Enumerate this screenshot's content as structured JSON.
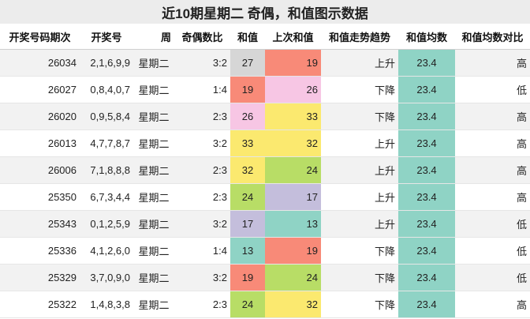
{
  "title": "近10期星期二 奇偶，和值图示数据",
  "headers": [
    "开奖号码期次",
    "开奖号",
    "周",
    "奇偶数比",
    "和值",
    "上次和值",
    "和值走势趋势",
    "和值均数",
    "和值均数对比"
  ],
  "colors": {
    "gray": "#d6d6d6",
    "red": "#f88a78",
    "pink": "#f7c6e4",
    "yellow": "#fbe96f",
    "green": "#b8dd66",
    "lavender": "#c4bedc",
    "teal": "#8fd3c5"
  },
  "rows": [
    {
      "period": "26034",
      "numbers": "2,1,6,9,9",
      "week": "星期二",
      "ratio": "3:2",
      "sum": "27",
      "sum_color": "gray",
      "prev": "19",
      "prev_color": "red",
      "trend": "上升",
      "avg": "23.4",
      "cmp": "高"
    },
    {
      "period": "26027",
      "numbers": "0,8,4,0,7",
      "week": "星期二",
      "ratio": "1:4",
      "sum": "19",
      "sum_color": "red",
      "prev": "26",
      "prev_color": "pink",
      "trend": "下降",
      "avg": "23.4",
      "cmp": "低"
    },
    {
      "period": "26020",
      "numbers": "0,9,5,8,4",
      "week": "星期二",
      "ratio": "2:3",
      "sum": "26",
      "sum_color": "pink",
      "prev": "33",
      "prev_color": "yellow",
      "trend": "下降",
      "avg": "23.4",
      "cmp": "高"
    },
    {
      "period": "26013",
      "numbers": "4,7,7,8,7",
      "week": "星期二",
      "ratio": "3:2",
      "sum": "33",
      "sum_color": "yellow",
      "prev": "32",
      "prev_color": "yellow",
      "trend": "上升",
      "avg": "23.4",
      "cmp": "高"
    },
    {
      "period": "26006",
      "numbers": "7,1,8,8,8",
      "week": "星期二",
      "ratio": "2:3",
      "sum": "32",
      "sum_color": "yellow",
      "prev": "24",
      "prev_color": "green",
      "trend": "上升",
      "avg": "23.4",
      "cmp": "高"
    },
    {
      "period": "25350",
      "numbers": "6,7,3,4,4",
      "week": "星期二",
      "ratio": "2:3",
      "sum": "24",
      "sum_color": "green",
      "prev": "17",
      "prev_color": "lavender",
      "trend": "上升",
      "avg": "23.4",
      "cmp": "高"
    },
    {
      "period": "25343",
      "numbers": "0,1,2,5,9",
      "week": "星期二",
      "ratio": "3:2",
      "sum": "17",
      "sum_color": "lavender",
      "prev": "13",
      "prev_color": "teal",
      "trend": "上升",
      "avg": "23.4",
      "cmp": "低"
    },
    {
      "period": "25336",
      "numbers": "4,1,2,6,0",
      "week": "星期二",
      "ratio": "1:4",
      "sum": "13",
      "sum_color": "teal",
      "prev": "19",
      "prev_color": "red",
      "trend": "下降",
      "avg": "23.4",
      "cmp": "低"
    },
    {
      "period": "25329",
      "numbers": "3,7,0,9,0",
      "week": "星期二",
      "ratio": "3:2",
      "sum": "19",
      "sum_color": "red",
      "prev": "24",
      "prev_color": "green",
      "trend": "下降",
      "avg": "23.4",
      "cmp": "低"
    },
    {
      "period": "25322",
      "numbers": "1,4,8,3,8",
      "week": "星期二",
      "ratio": "2:3",
      "sum": "24",
      "sum_color": "green",
      "prev": "32",
      "prev_color": "yellow",
      "trend": "下降",
      "avg": "23.4",
      "cmp": "高"
    }
  ]
}
